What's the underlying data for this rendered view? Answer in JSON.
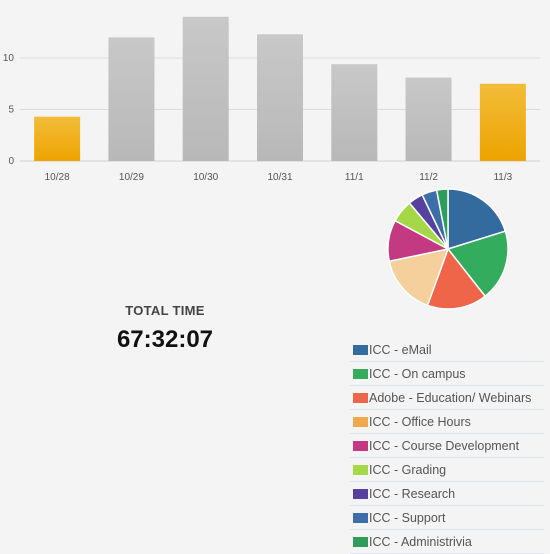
{
  "chart_data": [
    {
      "type": "bar",
      "categories": [
        "10/28",
        "10/29",
        "10/30",
        "10/31",
        "11/1",
        "11/2",
        "11/3"
      ],
      "values": [
        4.3,
        12.0,
        14.0,
        12.3,
        9.4,
        8.1,
        7.5
      ],
      "highlight": [
        true,
        false,
        false,
        false,
        false,
        false,
        true
      ],
      "highlight_color": "#f0a800",
      "base_color": "#bdbdbd",
      "yticks": [
        0,
        5,
        10
      ],
      "ylim": [
        0,
        15
      ],
      "grid": true,
      "title": "",
      "xlabel": "",
      "ylabel": ""
    },
    {
      "type": "pie",
      "labels": [
        "ICC - eMail",
        "ICC - On campus",
        "Adobe - Education/ Webinars",
        "ICC - Office Hours",
        "ICC - Course Development",
        "ICC - Grading",
        "ICC - Research",
        "ICC - Support",
        "ICC - Administrivia"
      ],
      "values": [
        20,
        19,
        16,
        16,
        11,
        6,
        4,
        4,
        3
      ],
      "colors": [
        "#336b9e",
        "#34ac5e",
        "#ee6549",
        "#f5cf9c",
        "#c33a83",
        "#a5d846",
        "#55419e",
        "#3c6faa",
        "#2f9d5a"
      ]
    }
  ],
  "total": {
    "label": "TOTAL TIME",
    "value": "67:32:07"
  },
  "legend": [
    {
      "label": "ICC - eMail",
      "color": "#336b9e"
    },
    {
      "label": "ICC - On campus",
      "color": "#34ac5e"
    },
    {
      "label": "Adobe - Education/ Webinars",
      "color": "#ee6549"
    },
    {
      "label": "ICC - Office Hours",
      "color": "#f0a84c"
    },
    {
      "label": "ICC - Course Development",
      "color": "#c33a83"
    },
    {
      "label": "ICC - Grading",
      "color": "#a5d846"
    },
    {
      "label": "ICC - Research",
      "color": "#55419e"
    },
    {
      "label": "ICC - Support",
      "color": "#3c6faa"
    },
    {
      "label": "ICC - Administrivia",
      "color": "#2f9d5a"
    }
  ]
}
